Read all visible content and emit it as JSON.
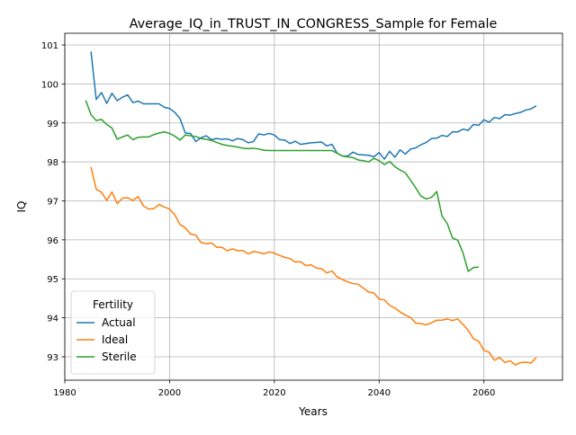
{
  "chart_data": {
    "type": "line",
    "title": "Average_IQ_in_TRUST_IN_CONGRESS_Sample for Female",
    "xlabel": "Years",
    "ylabel": "IQ",
    "xlim": [
      1980,
      2075
    ],
    "ylim": [
      92.4,
      101.3
    ],
    "xticks": [
      1980,
      2000,
      2020,
      2040,
      2060
    ],
    "yticks": [
      93,
      94,
      95,
      96,
      97,
      98,
      99,
      100,
      101
    ],
    "grid": true,
    "legend": {
      "title": "Fertility",
      "placement": "lower-left"
    },
    "series": [
      {
        "name": "Actual",
        "color": "#1f77b4",
        "x": [
          1985,
          1986,
          1987,
          1988,
          1989,
          1990,
          1991,
          1992,
          1993,
          1994,
          1995,
          1996,
          1997,
          1998,
          1999,
          2000,
          2001,
          2002,
          2003,
          2004,
          2005,
          2006,
          2007,
          2008,
          2009,
          2010,
          2011,
          2012,
          2013,
          2014,
          2015,
          2016,
          2017,
          2018,
          2019,
          2020,
          2021,
          2022,
          2023,
          2024,
          2025,
          2026,
          2027,
          2028,
          2029,
          2030,
          2031,
          2032,
          2033,
          2034,
          2035,
          2036,
          2037,
          2038,
          2039,
          2040,
          2041,
          2042,
          2043,
          2044,
          2045,
          2046,
          2047,
          2048,
          2049,
          2050,
          2051,
          2052,
          2053,
          2054,
          2055,
          2056,
          2057,
          2058,
          2059,
          2060,
          2061,
          2062,
          2063,
          2064,
          2065,
          2066,
          2067,
          2068,
          2069,
          2070
        ],
        "values": [
          100.83,
          99.6,
          99.78,
          99.5,
          99.76,
          99.57,
          99.66,
          99.72,
          99.52,
          99.56,
          99.49,
          99.49,
          99.49,
          99.49,
          99.4,
          99.37,
          99.27,
          99.11,
          98.74,
          98.73,
          98.52,
          98.62,
          98.67,
          98.57,
          98.6,
          98.58,
          98.59,
          98.54,
          98.6,
          98.57,
          98.49,
          98.52,
          98.72,
          98.69,
          98.73,
          98.69,
          98.57,
          98.56,
          98.47,
          98.53,
          98.45,
          98.47,
          98.49,
          98.5,
          98.51,
          98.41,
          98.45,
          98.22,
          98.15,
          98.15,
          98.25,
          98.19,
          98.18,
          98.17,
          98.13,
          98.24,
          98.07,
          98.27,
          98.12,
          98.31,
          98.2,
          98.33,
          98.36,
          98.44,
          98.5,
          98.6,
          98.61,
          98.68,
          98.65,
          98.77,
          98.77,
          98.84,
          98.81,
          98.96,
          98.94,
          99.08,
          99.02,
          99.14,
          99.11,
          99.21,
          99.2,
          99.24,
          99.27,
          99.33,
          99.36,
          99.44
        ]
      },
      {
        "name": "Ideal",
        "color": "#ff7f0e",
        "x": [
          1985,
          1986,
          1987,
          1988,
          1989,
          1990,
          1991,
          1992,
          1993,
          1994,
          1995,
          1996,
          1997,
          1998,
          1999,
          2000,
          2001,
          2002,
          2003,
          2004,
          2005,
          2006,
          2007,
          2008,
          2009,
          2010,
          2011,
          2012,
          2013,
          2014,
          2015,
          2016,
          2017,
          2018,
          2019,
          2020,
          2021,
          2022,
          2023,
          2024,
          2025,
          2026,
          2027,
          2028,
          2029,
          2030,
          2031,
          2032,
          2033,
          2034,
          2035,
          2036,
          2037,
          2038,
          2039,
          2040,
          2041,
          2042,
          2043,
          2044,
          2045,
          2046,
          2047,
          2048,
          2049,
          2050,
          2051,
          2052,
          2053,
          2054,
          2055,
          2056,
          2057,
          2058,
          2059,
          2060,
          2061,
          2062,
          2063,
          2064,
          2065,
          2066,
          2067,
          2068,
          2069,
          2070
        ],
        "values": [
          97.87,
          97.3,
          97.22,
          97.01,
          97.23,
          96.93,
          97.07,
          97.08,
          97.01,
          97.11,
          96.87,
          96.79,
          96.8,
          96.91,
          96.84,
          96.79,
          96.64,
          96.39,
          96.31,
          96.15,
          96.12,
          95.93,
          95.9,
          95.92,
          95.81,
          95.81,
          95.72,
          95.77,
          95.72,
          95.73,
          95.64,
          95.7,
          95.68,
          95.64,
          95.69,
          95.66,
          95.6,
          95.55,
          95.52,
          95.43,
          95.44,
          95.34,
          95.36,
          95.28,
          95.26,
          95.15,
          95.2,
          95.05,
          94.98,
          94.92,
          94.88,
          94.86,
          94.76,
          94.66,
          94.64,
          94.48,
          94.46,
          94.32,
          94.25,
          94.15,
          94.07,
          94.01,
          93.86,
          93.85,
          93.82,
          93.87,
          93.94,
          93.94,
          93.97,
          93.93,
          93.97,
          93.83,
          93.68,
          93.46,
          93.4,
          93.16,
          93.12,
          92.91,
          92.98,
          92.85,
          92.9,
          92.79,
          92.85,
          92.86,
          92.84,
          92.98
        ]
      },
      {
        "name": "Sterile",
        "color": "#2ca02c",
        "x": [
          1984,
          1985,
          1986,
          1987,
          1988,
          1989,
          1990,
          1991,
          1992,
          1993,
          1994,
          1995,
          1996,
          1997,
          1998,
          1999,
          2000,
          2001,
          2002,
          2003,
          2004,
          2005,
          2006,
          2007,
          2008,
          2009,
          2010,
          2011,
          2012,
          2013,
          2014,
          2015,
          2016,
          2017,
          2018,
          2019,
          2020,
          2021,
          2022,
          2023,
          2024,
          2025,
          2026,
          2027,
          2028,
          2029,
          2030,
          2031,
          2032,
          2033,
          2034,
          2035,
          2036,
          2037,
          2038,
          2039,
          2040,
          2041,
          2042,
          2043,
          2044,
          2045,
          2046,
          2047,
          2048,
          2049,
          2050,
          2051,
          2052,
          2053,
          2054,
          2055,
          2056,
          2057,
          2058,
          2059
        ],
        "values": [
          99.58,
          99.21,
          99.06,
          99.09,
          98.96,
          98.87,
          98.58,
          98.64,
          98.69,
          98.57,
          98.63,
          98.64,
          98.64,
          98.7,
          98.74,
          98.77,
          98.73,
          98.66,
          98.56,
          98.69,
          98.67,
          98.65,
          98.6,
          98.58,
          98.55,
          98.5,
          98.45,
          98.42,
          98.4,
          98.38,
          98.35,
          98.34,
          98.35,
          98.33,
          98.3,
          98.29,
          98.29,
          98.29,
          98.29,
          98.29,
          98.29,
          98.29,
          98.29,
          98.29,
          98.29,
          98.29,
          98.29,
          98.29,
          98.22,
          98.15,
          98.13,
          98.11,
          98.05,
          98.03,
          98.0,
          98.09,
          98.03,
          97.93,
          98.01,
          97.88,
          97.79,
          97.72,
          97.53,
          97.33,
          97.12,
          97.05,
          97.09,
          97.24,
          96.61,
          96.42,
          96.05,
          95.99,
          95.67,
          95.19,
          95.29,
          95.3
        ]
      }
    ]
  }
}
